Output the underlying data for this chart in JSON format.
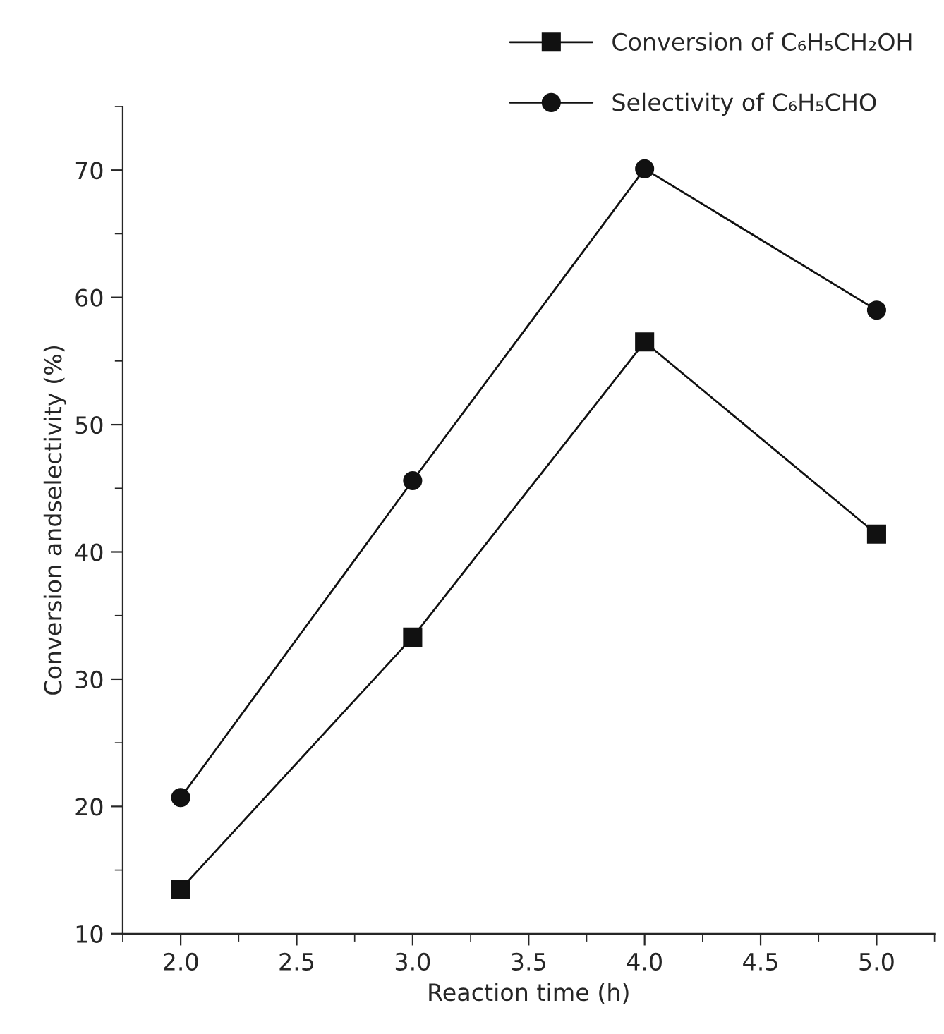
{
  "chart_data": {
    "type": "line",
    "xlabel": "Reaction time (h)",
    "ylabel": "Conversion andselectivity (%)",
    "x": [
      2.0,
      3.0,
      4.0,
      5.0
    ],
    "series": [
      {
        "name": "Conversion of C₆H₅CH₂OH",
        "color": "#111111",
        "marker": "square",
        "values": [
          13.5,
          33.3,
          56.5,
          41.4
        ]
      },
      {
        "name": "Selectivity of C₆H₅CHO",
        "color": "#111111",
        "marker": "circle",
        "values": [
          20.7,
          45.6,
          70.1,
          59.0
        ]
      }
    ],
    "xlim": [
      1.75,
      5.25
    ],
    "xticks": [
      {
        "value": 2.0,
        "label": "2.0"
      },
      {
        "value": 2.5,
        "label": "2.5"
      },
      {
        "value": 3.0,
        "label": "3.0"
      },
      {
        "value": 3.5,
        "label": "3.5"
      },
      {
        "value": 4.0,
        "label": "4.0"
      },
      {
        "value": 4.5,
        "label": "4.5"
      },
      {
        "value": 5.0,
        "label": "5.0"
      }
    ],
    "ylim": [
      10,
      75
    ],
    "yticks": [
      10,
      20,
      30,
      40,
      50,
      60,
      70
    ],
    "grid": false,
    "legend": "top right",
    "line_style": "solid"
  }
}
